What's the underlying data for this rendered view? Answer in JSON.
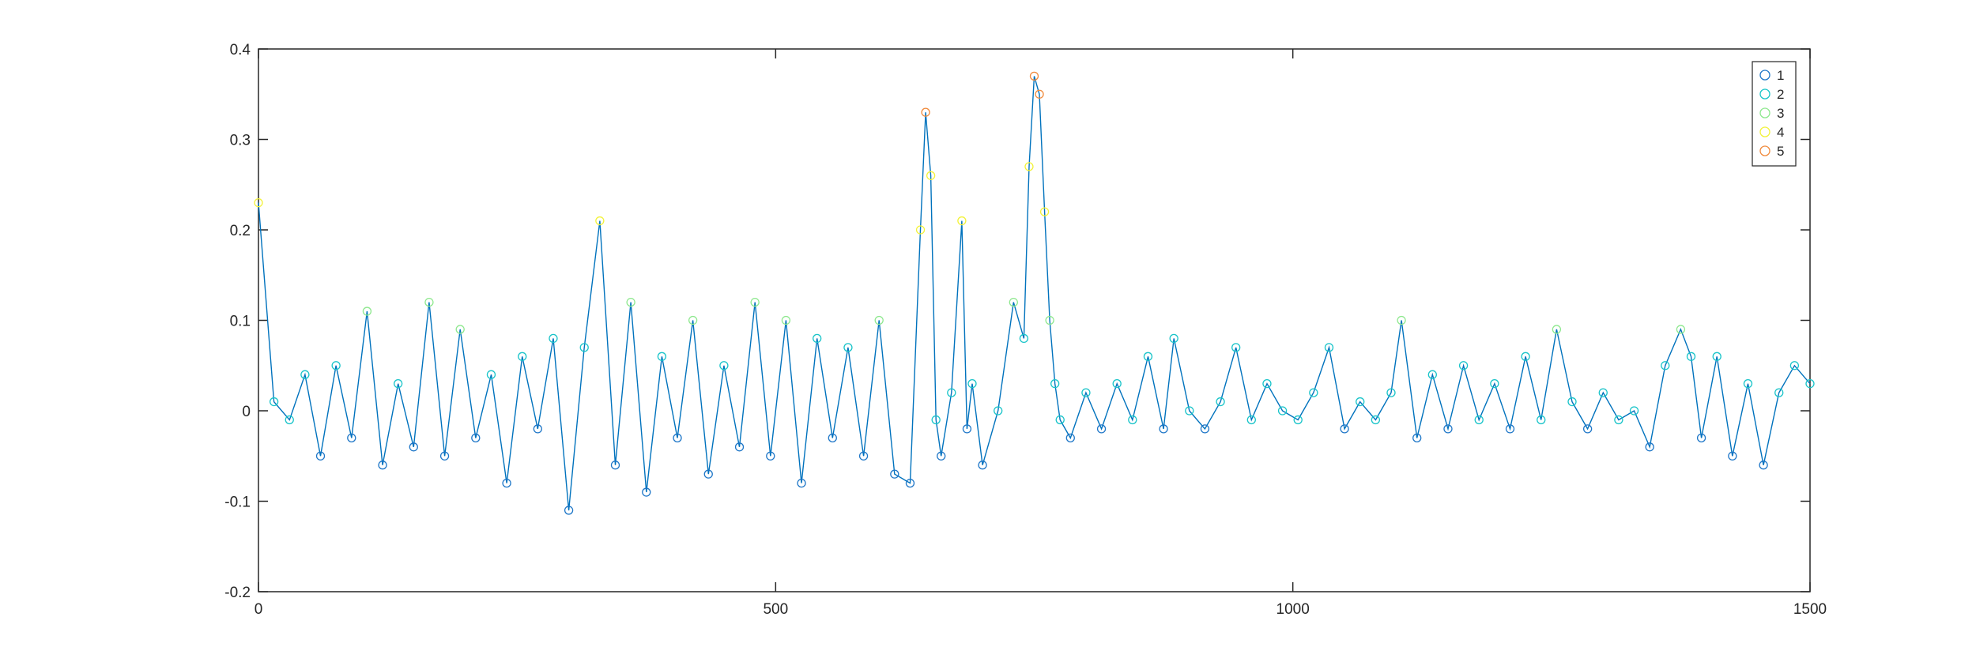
{
  "chart_data": {
    "type": "scatter",
    "title": "",
    "xlabel": "",
    "ylabel": "",
    "xlim": [
      0,
      1500
    ],
    "ylim": [
      -0.2,
      0.4
    ],
    "xticks": [
      0,
      500,
      1000,
      1500
    ],
    "xtick_labels": [
      "0",
      "500",
      "1000",
      "1500"
    ],
    "yticks": [
      -0.2,
      -0.1,
      0,
      0.1,
      0.2,
      0.3,
      0.4
    ],
    "ytick_labels": [
      "-0.2",
      "-0.1",
      "0",
      "0.1",
      "0.2",
      "0.3",
      "0.4"
    ],
    "grid": false,
    "legend_position": "top-right",
    "line_color": "#0072BD",
    "series": [
      {
        "name": "1",
        "color": "#1f77c8"
      },
      {
        "name": "2",
        "color": "#19c4c9"
      },
      {
        "name": "3",
        "color": "#8ee88e"
      },
      {
        "name": "4",
        "color": "#f2f23a"
      },
      {
        "name": "5",
        "color": "#f08a3c"
      }
    ],
    "x": [
      0,
      15,
      30,
      45,
      60,
      75,
      90,
      105,
      120,
      135,
      150,
      165,
      180,
      195,
      210,
      225,
      240,
      255,
      270,
      285,
      300,
      315,
      330,
      345,
      360,
      375,
      390,
      405,
      420,
      435,
      450,
      465,
      480,
      495,
      510,
      525,
      540,
      555,
      570,
      585,
      600,
      615,
      630,
      640,
      645,
      650,
      655,
      660,
      670,
      680,
      685,
      690,
      700,
      715,
      730,
      740,
      745,
      750,
      755,
      760,
      765,
      770,
      775,
      785,
      800,
      815,
      830,
      845,
      860,
      875,
      885,
      900,
      915,
      930,
      945,
      960,
      975,
      990,
      1005,
      1020,
      1035,
      1050,
      1065,
      1080,
      1095,
      1105,
      1120,
      1135,
      1150,
      1165,
      1180,
      1195,
      1210,
      1225,
      1240,
      1255,
      1270,
      1285,
      1300,
      1315,
      1330,
      1345,
      1360,
      1375,
      1385,
      1395,
      1410,
      1425,
      1440,
      1455,
      1470,
      1485,
      1500
    ],
    "y": [
      0.23,
      0.01,
      -0.01,
      0.04,
      -0.05,
      0.05,
      -0.03,
      0.11,
      -0.06,
      0.03,
      -0.04,
      0.12,
      -0.05,
      0.09,
      -0.03,
      0.04,
      -0.08,
      0.06,
      -0.02,
      0.08,
      -0.11,
      0.07,
      0.21,
      -0.06,
      0.12,
      -0.09,
      0.06,
      -0.03,
      0.1,
      -0.07,
      0.05,
      -0.04,
      0.12,
      -0.05,
      0.1,
      -0.08,
      0.08,
      -0.03,
      0.07,
      -0.05,
      0.1,
      -0.07,
      -0.08,
      0.2,
      0.33,
      0.26,
      -0.01,
      -0.05,
      0.02,
      0.21,
      -0.02,
      0.03,
      -0.06,
      0.0,
      0.12,
      0.08,
      0.27,
      0.37,
      0.35,
      0.22,
      0.1,
      0.03,
      -0.01,
      -0.03,
      0.02,
      -0.02,
      0.03,
      -0.01,
      0.06,
      -0.02,
      0.08,
      0.0,
      -0.02,
      0.01,
      0.07,
      -0.01,
      0.03,
      0.0,
      -0.01,
      0.02,
      0.07,
      -0.02,
      0.01,
      -0.01,
      0.02,
      0.1,
      -0.03,
      0.04,
      -0.02,
      0.05,
      -0.01,
      0.03,
      -0.02,
      0.06,
      -0.01,
      0.09,
      0.01,
      -0.02,
      0.02,
      -0.01,
      0.0,
      -0.04,
      0.05,
      0.09,
      0.06,
      -0.03,
      0.06,
      -0.05,
      0.03,
      -0.06,
      0.02,
      0.05,
      0.03
    ]
  }
}
